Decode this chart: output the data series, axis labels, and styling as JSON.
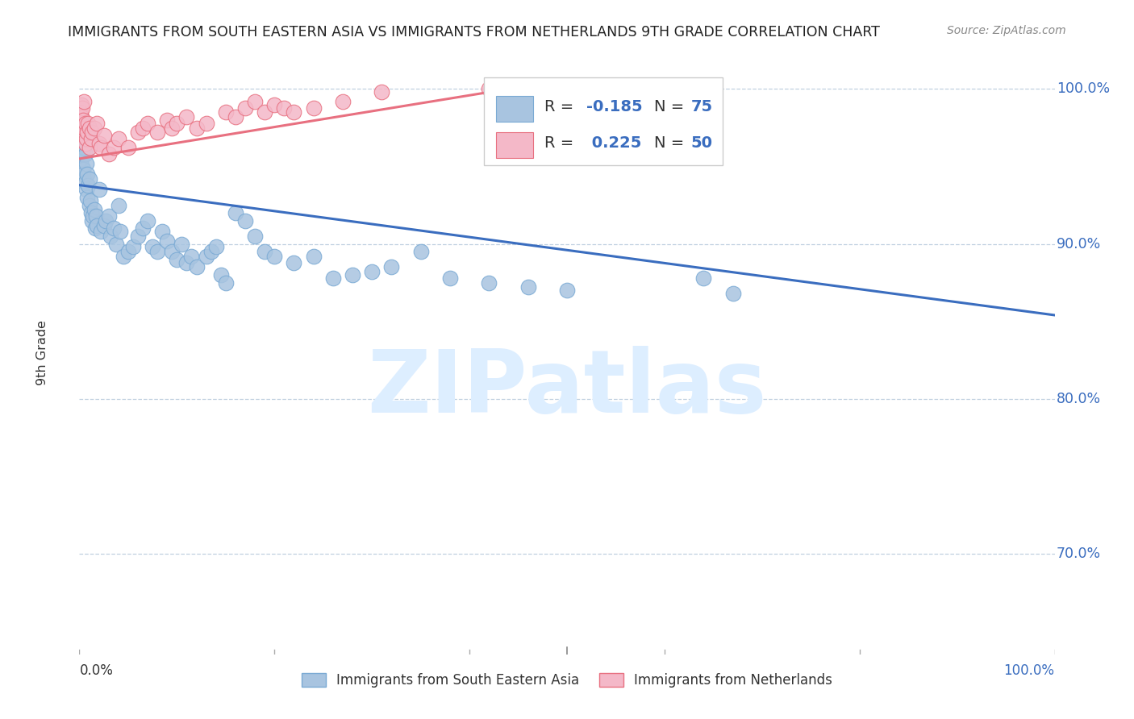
{
  "title": "IMMIGRANTS FROM SOUTH EASTERN ASIA VS IMMIGRANTS FROM NETHERLANDS 9TH GRADE CORRELATION CHART",
  "source": "Source: ZipAtlas.com",
  "ylabel": "9th Grade",
  "ytick_labels": [
    "100.0%",
    "90.0%",
    "80.0%",
    "70.0%"
  ],
  "ytick_values": [
    1.0,
    0.9,
    0.8,
    0.7
  ],
  "legend_label_blue": "Immigrants from South Eastern Asia",
  "legend_label_pink": "Immigrants from Netherlands",
  "blue_color": "#a8c4e0",
  "blue_edge_color": "#7aaad4",
  "blue_line_color": "#3a6dbf",
  "pink_color": "#f4b8c8",
  "pink_edge_color": "#e87080",
  "pink_line_color": "#e87080",
  "background_color": "#ffffff",
  "grid_color": "#c0d0e0",
  "watermark_color": "#ddeeff",
  "blue_scatter_x": [
    0.001,
    0.002,
    0.002,
    0.003,
    0.003,
    0.004,
    0.004,
    0.005,
    0.005,
    0.006,
    0.006,
    0.007,
    0.007,
    0.008,
    0.008,
    0.009,
    0.01,
    0.01,
    0.011,
    0.012,
    0.013,
    0.014,
    0.015,
    0.016,
    0.017,
    0.018,
    0.02,
    0.022,
    0.025,
    0.027,
    0.03,
    0.032,
    0.035,
    0.038,
    0.04,
    0.042,
    0.045,
    0.05,
    0.055,
    0.06,
    0.065,
    0.07,
    0.075,
    0.08,
    0.085,
    0.09,
    0.095,
    0.1,
    0.105,
    0.11,
    0.115,
    0.12,
    0.13,
    0.135,
    0.14,
    0.145,
    0.15,
    0.16,
    0.17,
    0.18,
    0.19,
    0.2,
    0.22,
    0.24,
    0.26,
    0.28,
    0.3,
    0.32,
    0.35,
    0.38,
    0.42,
    0.46,
    0.5,
    0.64,
    0.67
  ],
  "blue_scatter_y": [
    0.965,
    0.96,
    0.955,
    0.95,
    0.958,
    0.948,
    0.945,
    0.97,
    0.962,
    0.958,
    0.94,
    0.952,
    0.935,
    0.945,
    0.93,
    0.938,
    0.942,
    0.925,
    0.928,
    0.92,
    0.915,
    0.918,
    0.922,
    0.91,
    0.918,
    0.912,
    0.935,
    0.908,
    0.912,
    0.915,
    0.918,
    0.905,
    0.91,
    0.9,
    0.925,
    0.908,
    0.892,
    0.895,
    0.898,
    0.905,
    0.91,
    0.915,
    0.898,
    0.895,
    0.908,
    0.902,
    0.895,
    0.89,
    0.9,
    0.888,
    0.892,
    0.885,
    0.892,
    0.895,
    0.898,
    0.88,
    0.875,
    0.92,
    0.915,
    0.905,
    0.895,
    0.892,
    0.888,
    0.892,
    0.878,
    0.88,
    0.882,
    0.885,
    0.895,
    0.878,
    0.875,
    0.872,
    0.87,
    0.878,
    0.868
  ],
  "pink_scatter_x": [
    0.001,
    0.001,
    0.002,
    0.002,
    0.003,
    0.003,
    0.004,
    0.004,
    0.005,
    0.005,
    0.006,
    0.006,
    0.007,
    0.008,
    0.009,
    0.01,
    0.01,
    0.012,
    0.013,
    0.015,
    0.018,
    0.02,
    0.022,
    0.025,
    0.03,
    0.035,
    0.04,
    0.05,
    0.06,
    0.065,
    0.07,
    0.08,
    0.09,
    0.095,
    0.1,
    0.11,
    0.12,
    0.13,
    0.15,
    0.16,
    0.17,
    0.18,
    0.19,
    0.2,
    0.21,
    0.22,
    0.24,
    0.27,
    0.31,
    0.42
  ],
  "pink_scatter_y": [
    0.985,
    0.978,
    0.99,
    0.982,
    0.988,
    0.975,
    0.98,
    0.97,
    0.992,
    0.975,
    0.978,
    0.965,
    0.968,
    0.972,
    0.978,
    0.975,
    0.962,
    0.968,
    0.972,
    0.975,
    0.978,
    0.965,
    0.962,
    0.97,
    0.958,
    0.962,
    0.968,
    0.962,
    0.972,
    0.975,
    0.978,
    0.972,
    0.98,
    0.975,
    0.978,
    0.982,
    0.975,
    0.978,
    0.985,
    0.982,
    0.988,
    0.992,
    0.985,
    0.99,
    0.988,
    0.985,
    0.988,
    0.992,
    0.998,
    1.0
  ],
  "blue_line_x": [
    0.0,
    1.0
  ],
  "blue_line_y": [
    0.938,
    0.854
  ],
  "pink_line_x": [
    0.0,
    0.42
  ],
  "pink_line_y": [
    0.955,
    0.998
  ],
  "xlim": [
    0.0,
    1.0
  ],
  "ylim": [
    0.635,
    1.025
  ],
  "dot_size": 180
}
